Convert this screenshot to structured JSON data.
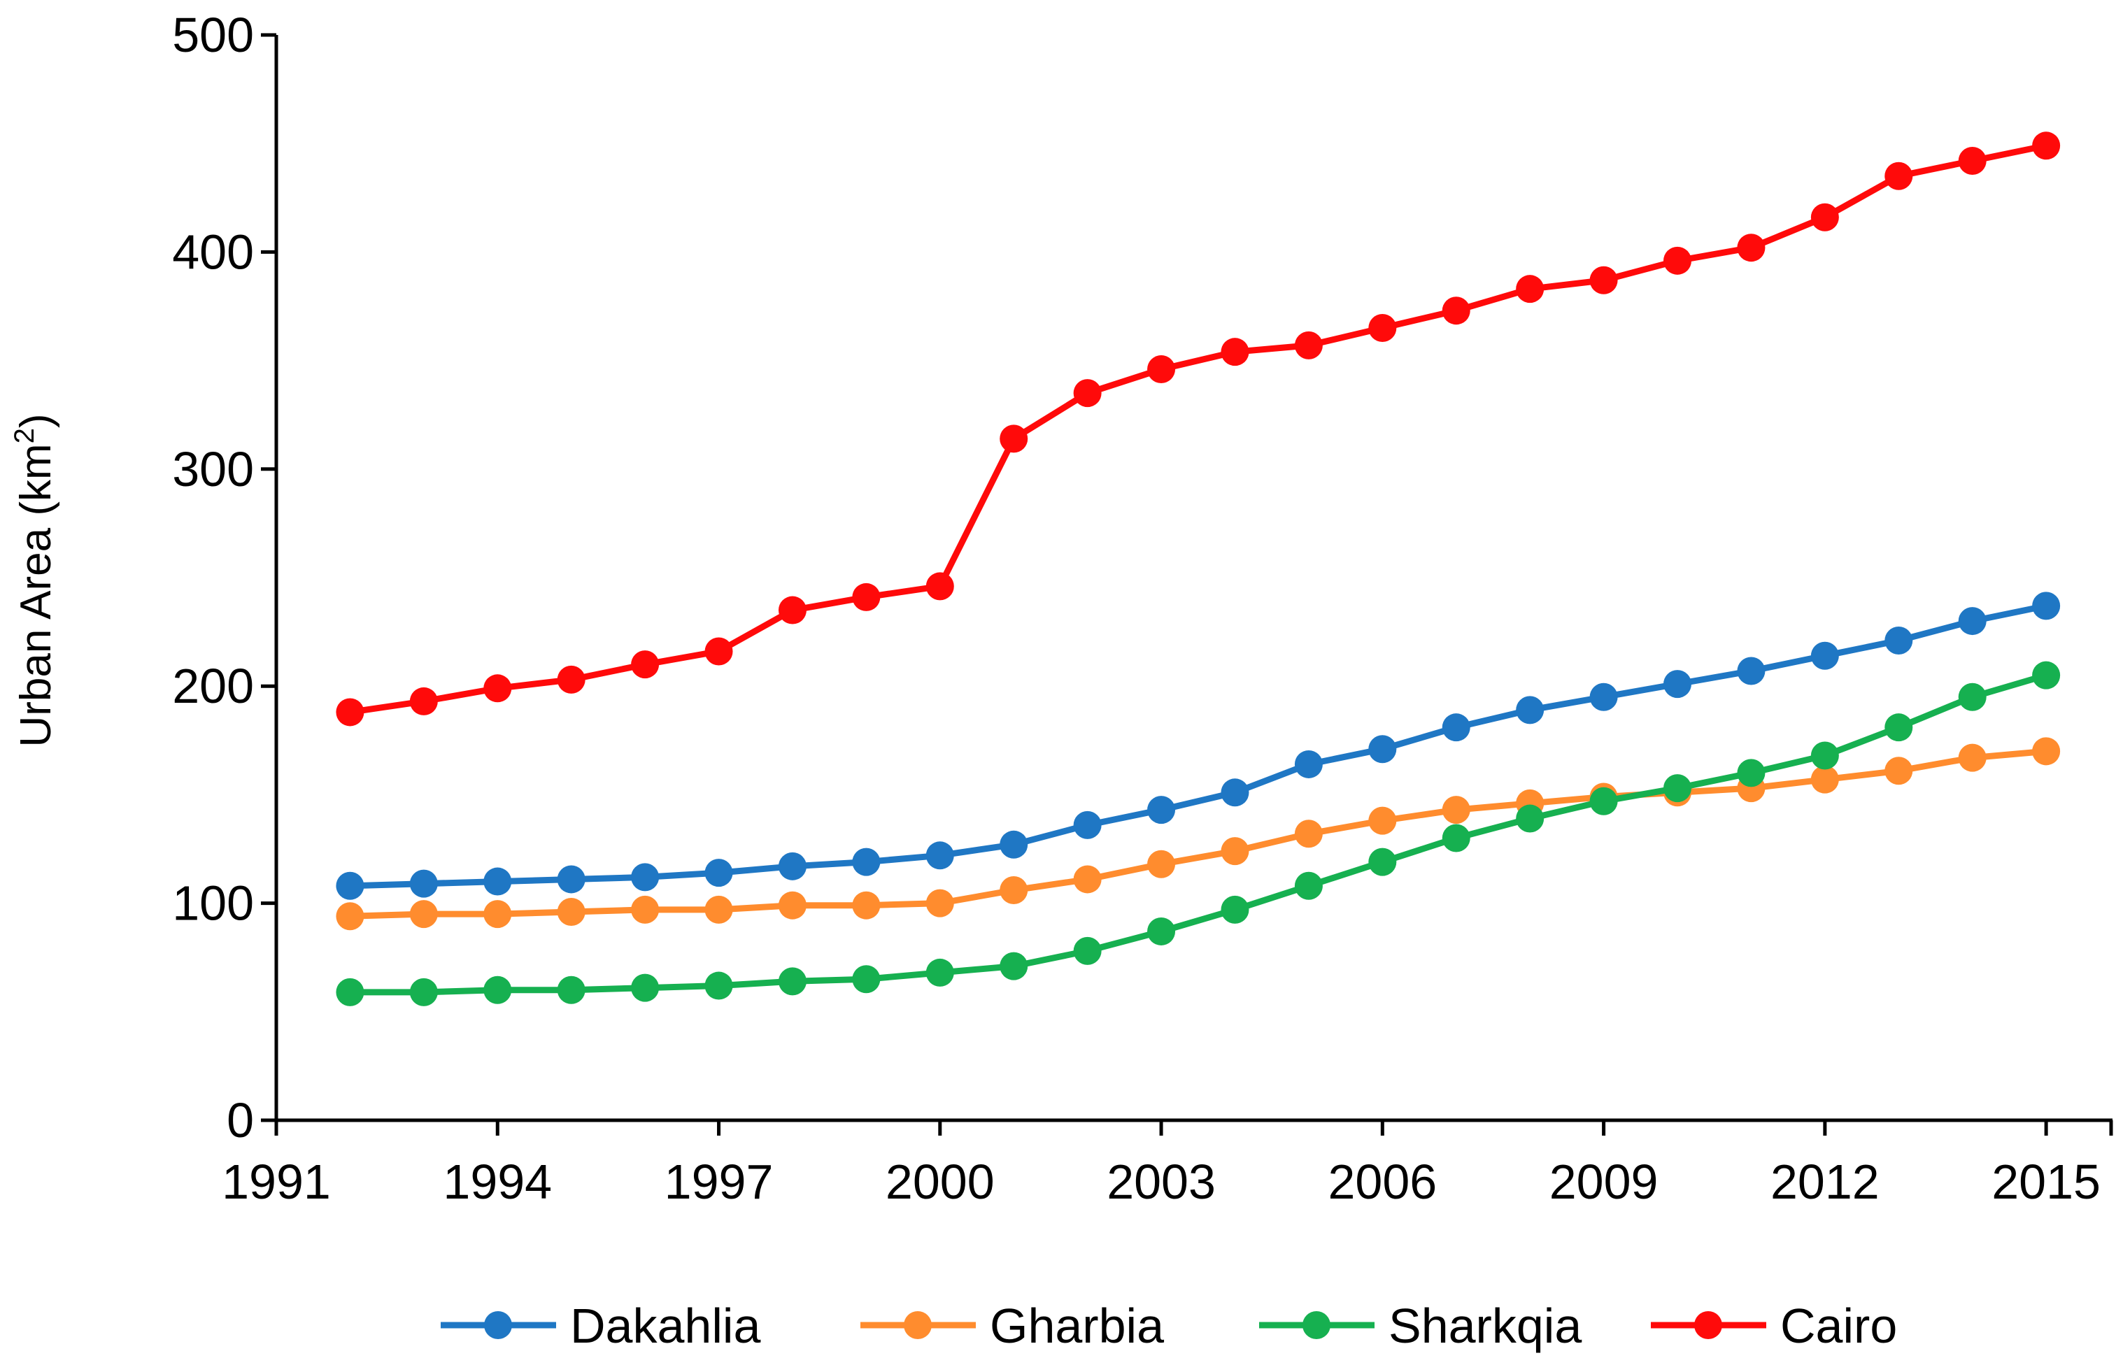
{
  "chart_data": {
    "type": "line",
    "title": "",
    "xlabel": "",
    "ylabel": "Urban Area (km",
    "ylabel_superscript": "2",
    "ylabel_suffix": ")",
    "xlim": [
      1991,
      2015.9
    ],
    "ylim": [
      0,
      500
    ],
    "x_ticks": [
      1991,
      1994,
      1997,
      2000,
      2003,
      2006,
      2009,
      2012,
      2015
    ],
    "y_ticks": [
      0,
      100,
      200,
      300,
      400,
      500
    ],
    "grid": false,
    "legend_position": "bottom",
    "x": [
      1992,
      1993,
      1994,
      1995,
      1996,
      1997,
      1998,
      1999,
      2000,
      2001,
      2002,
      2003,
      2004,
      2005,
      2006,
      2007,
      2008,
      2009,
      2010,
      2011,
      2012,
      2013,
      2014,
      2015
    ],
    "series": [
      {
        "name": "Dakahlia",
        "color": "#1F77C4",
        "values": [
          108,
          109,
          110,
          111,
          112,
          114,
          117,
          119,
          122,
          127,
          136,
          143,
          151,
          164,
          171,
          181,
          189,
          195,
          201,
          207,
          214,
          221,
          230,
          237
        ]
      },
      {
        "name": "Gharbia",
        "color": "#FF8C2E",
        "values": [
          94,
          95,
          95,
          96,
          97,
          97,
          99,
          99,
          100,
          106,
          111,
          118,
          124,
          132,
          138,
          143,
          146,
          149,
          151,
          153,
          157,
          161,
          167,
          170
        ]
      },
      {
        "name": "Sharkqia",
        "color": "#16B050",
        "values": [
          59,
          59,
          60,
          60,
          61,
          62,
          64,
          65,
          68,
          71,
          78,
          87,
          97,
          108,
          119,
          130,
          139,
          147,
          153,
          160,
          168,
          181,
          195,
          205
        ]
      },
      {
        "name": "Cairo",
        "color": "#FF0A0A",
        "values": [
          188,
          193,
          199,
          203,
          210,
          216,
          235,
          241,
          246,
          314,
          335,
          346,
          354,
          357,
          365,
          373,
          383,
          387,
          396,
          402,
          416,
          435,
          442,
          449
        ]
      }
    ]
  }
}
